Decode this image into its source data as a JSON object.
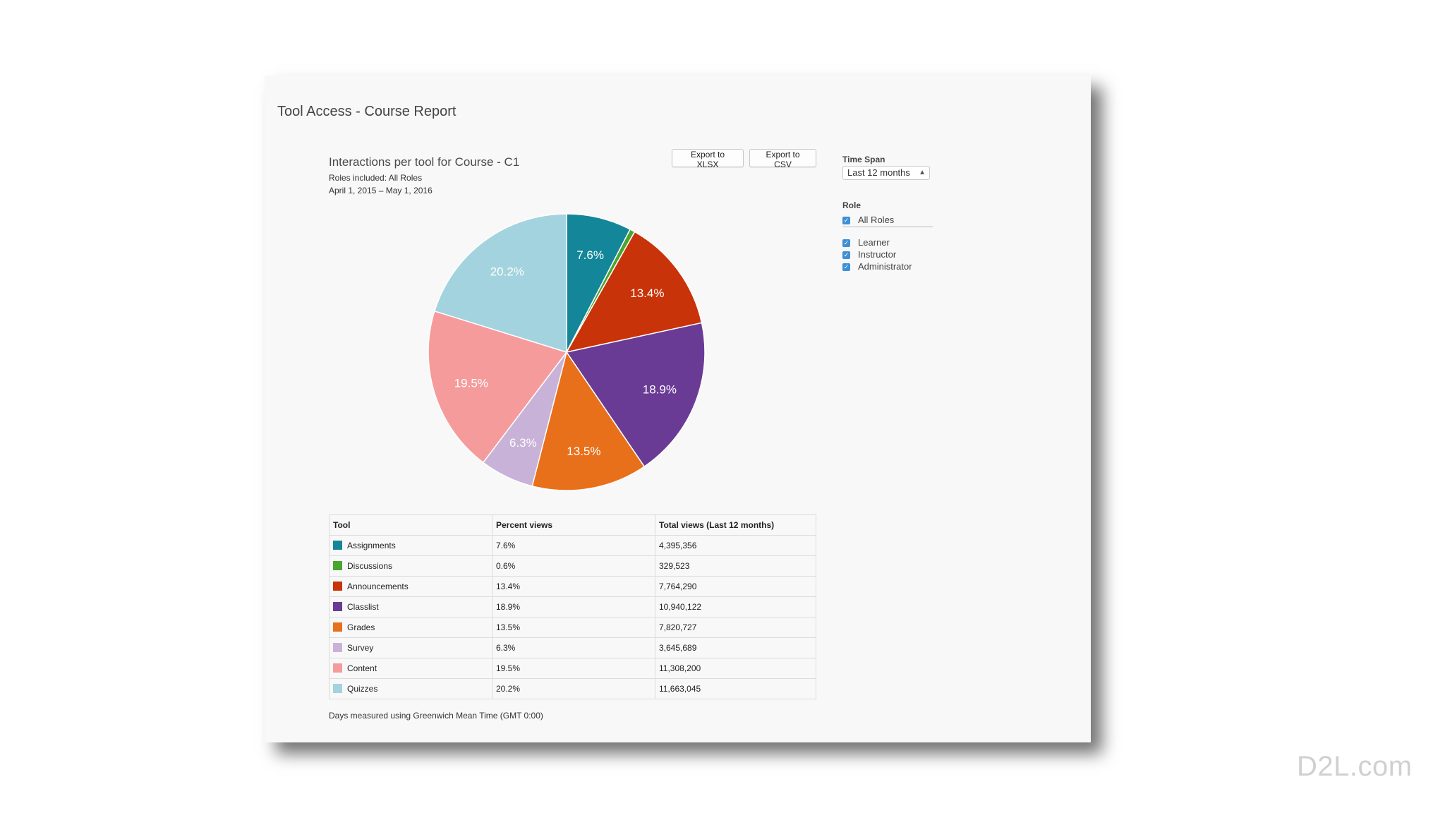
{
  "page_title": "Tool Access - Course Report",
  "chart_header": {
    "title": "Interactions per tool for Course - C1",
    "roles_line": "Roles included: All Roles",
    "date_range": "April 1, 2015 – May 1, 2016"
  },
  "buttons": {
    "export_xlsx": "Export to XLSX",
    "export_csv": "Export to CSV"
  },
  "filters": {
    "time_span_label": "Time Span",
    "time_span_value": "Last 12 months",
    "role_label": "Role",
    "roles": [
      {
        "label": "All Roles",
        "checked": true
      },
      {
        "label": "Learner",
        "checked": true
      },
      {
        "label": "Instructor",
        "checked": true
      },
      {
        "label": "Administrator",
        "checked": true
      }
    ]
  },
  "chart_data": {
    "type": "pie",
    "categories": [
      "Assignments",
      "Discussions",
      "Announcements",
      "Classlist",
      "Grades",
      "Survey",
      "Content",
      "Quizzes"
    ],
    "values": [
      7.6,
      0.6,
      13.4,
      18.9,
      13.5,
      6.3,
      19.5,
      20.2
    ],
    "slice_labels": [
      "7.6%",
      "",
      "13.4%",
      "18.9%",
      "13.5%",
      "6.3%",
      "19.5%",
      "20.2%"
    ],
    "colors": [
      "#138699",
      "#4aa52f",
      "#c93309",
      "#6a3b95",
      "#e8701b",
      "#c9b2d8",
      "#f59b9c",
      "#a3d3de"
    ],
    "start_angle_deg": 0,
    "direction": "clockwise"
  },
  "table": {
    "headers": [
      "Tool",
      "Percent views",
      "Total views (Last 12 months)"
    ],
    "rows": [
      [
        "Assignments",
        "7.6%",
        "4,395,356"
      ],
      [
        "Discussions",
        "0.6%",
        "329,523"
      ],
      [
        "Announcements",
        "13.4%",
        "7,764,290"
      ],
      [
        "Classlist",
        "18.9%",
        "10,940,122"
      ],
      [
        "Grades",
        "13.5%",
        "7,820,727"
      ],
      [
        "Survey",
        "6.3%",
        "3,645,689"
      ],
      [
        "Content",
        "19.5%",
        "11,308,200"
      ],
      [
        "Quizzes",
        "20.2%",
        "11,663,045"
      ]
    ]
  },
  "footnote": "Days measured using Greenwich Mean Time (GMT 0:00)",
  "brand": "D2L.com"
}
